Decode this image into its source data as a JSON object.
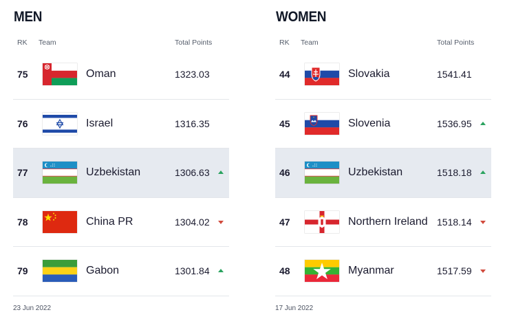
{
  "men": {
    "title": "MEN",
    "headers": {
      "rk": "RK",
      "team": "Team",
      "points": "Total Points"
    },
    "date": "23 Jun 2022",
    "rows": [
      {
        "rank": "75",
        "team": "Oman",
        "flag": "oman-flag-icon",
        "points": "1323.03",
        "trend": "none",
        "highlight": false
      },
      {
        "rank": "76",
        "team": "Israel",
        "flag": "israel-flag-icon",
        "points": "1316.35",
        "trend": "none",
        "highlight": false
      },
      {
        "rank": "77",
        "team": "Uzbekistan",
        "flag": "uzbekistan-flag-icon",
        "points": "1306.63",
        "trend": "up",
        "highlight": true
      },
      {
        "rank": "78",
        "team": "China PR",
        "flag": "china-flag-icon",
        "points": "1304.02",
        "trend": "down",
        "highlight": false
      },
      {
        "rank": "79",
        "team": "Gabon",
        "flag": "gabon-flag-icon",
        "points": "1301.84",
        "trend": "up",
        "highlight": false
      }
    ]
  },
  "women": {
    "title": "WOMEN",
    "headers": {
      "rk": "RK",
      "team": "Team",
      "points": "Total Points"
    },
    "date": "17 Jun 2022",
    "rows": [
      {
        "rank": "44",
        "team": "Slovakia",
        "flag": "slovakia-flag-icon",
        "points": "1541.41",
        "trend": "none",
        "highlight": false
      },
      {
        "rank": "45",
        "team": "Slovenia",
        "flag": "slovenia-flag-icon",
        "points": "1536.95",
        "trend": "up",
        "highlight": false
      },
      {
        "rank": "46",
        "team": "Uzbekistan",
        "flag": "uzbekistan-flag-icon",
        "points": "1518.18",
        "trend": "up",
        "highlight": true
      },
      {
        "rank": "47",
        "team": "Northern Ireland",
        "flag": "northern-ireland-flag-icon",
        "points": "1518.14",
        "trend": "down",
        "highlight": false
      },
      {
        "rank": "48",
        "team": "Myanmar",
        "flag": "myanmar-flag-icon",
        "points": "1517.59",
        "trend": "down",
        "highlight": false
      }
    ]
  },
  "colors": {
    "trend_up": "#2aa35f",
    "trend_down": "#d14a3c",
    "highlight_row": "#e6eaf0"
  }
}
